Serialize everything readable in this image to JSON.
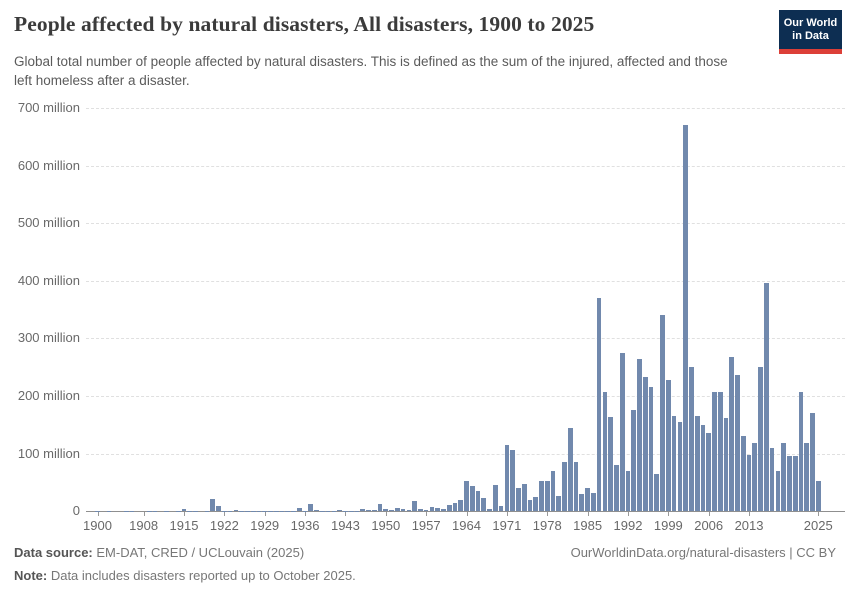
{
  "header": {
    "title": "People affected by natural disasters, All disasters, 1900 to 2025",
    "subtitle": "Global total number of people affected by natural disasters. This is defined as the sum of the injured, affected and those left homeless after a disaster.",
    "logo": {
      "line1": "Our World",
      "line2": "in Data",
      "bg_color": "#0d2e52",
      "stripe_color": "#dc3f38"
    }
  },
  "chart_data": {
    "type": "bar",
    "title": "People affected by natural disasters, All disasters, 1900 to 2025",
    "unit": "million people",
    "bar_color": "#7189ad",
    "grid": "dashed horizontal",
    "ylim": [
      0,
      700
    ],
    "ytick_step": 100,
    "ytick_labels": [
      "0",
      "100 million",
      "200 million",
      "300 million",
      "400 million",
      "500 million",
      "600 million",
      "700 million"
    ],
    "xtick_years": [
      1900,
      1908,
      1915,
      1922,
      1929,
      1936,
      1943,
      1950,
      1957,
      1964,
      1971,
      1978,
      1985,
      1992,
      1999,
      2006,
      2013,
      2025
    ],
    "x_start": 1900,
    "x_end": 2025,
    "years": [
      1900,
      1901,
      1902,
      1903,
      1904,
      1905,
      1906,
      1907,
      1908,
      1909,
      1910,
      1911,
      1912,
      1913,
      1914,
      1915,
      1916,
      1917,
      1918,
      1919,
      1920,
      1921,
      1922,
      1923,
      1924,
      1925,
      1926,
      1927,
      1928,
      1929,
      1930,
      1931,
      1932,
      1933,
      1934,
      1935,
      1936,
      1937,
      1938,
      1939,
      1940,
      1941,
      1942,
      1943,
      1944,
      1945,
      1946,
      1947,
      1948,
      1949,
      1950,
      1951,
      1952,
      1953,
      1954,
      1955,
      1956,
      1957,
      1958,
      1959,
      1960,
      1961,
      1962,
      1963,
      1964,
      1965,
      1966,
      1967,
      1968,
      1969,
      1970,
      1971,
      1972,
      1973,
      1974,
      1975,
      1976,
      1977,
      1978,
      1979,
      1980,
      1981,
      1982,
      1983,
      1984,
      1985,
      1986,
      1987,
      1988,
      1989,
      1990,
      1991,
      1992,
      1993,
      1994,
      1995,
      1996,
      1997,
      1998,
      1999,
      2000,
      2001,
      2002,
      2003,
      2004,
      2005,
      2006,
      2007,
      2008,
      2009,
      2010,
      2011,
      2012,
      2013,
      2014,
      2015,
      2016,
      2017,
      2018,
      2019,
      2020,
      2021,
      2022,
      2023,
      2024,
      2025
    ],
    "values": [
      0.2,
      0,
      0.2,
      0,
      0,
      0.2,
      0.3,
      0,
      0,
      1,
      0.3,
      0,
      0.5,
      0,
      0.3,
      4,
      0.5,
      0.3,
      0,
      0.5,
      22,
      9,
      0.3,
      0.5,
      1.5,
      0.3,
      0.5,
      0.8,
      0.5,
      0.5,
      0.3,
      0.5,
      1,
      0.3,
      0.5,
      5,
      0.5,
      12,
      2,
      0.5,
      0.3,
      0.5,
      2,
      1,
      0.3,
      1,
      3,
      2,
      1.5,
      12.5,
      4.5,
      1.5,
      5.5,
      3,
      1.5,
      18,
      3.5,
      2,
      7,
      5,
      3,
      10,
      15,
      19,
      52,
      44,
      35,
      23,
      4,
      46,
      9,
      115,
      107,
      41,
      48,
      20,
      25,
      52,
      52,
      70,
      26,
      86,
      145,
      85,
      29,
      41,
      32,
      371,
      207,
      164,
      80,
      275,
      70,
      175,
      265,
      233,
      216,
      64,
      341,
      228,
      166,
      155,
      670,
      251,
      166,
      150,
      135,
      207,
      207,
      161,
      268,
      236,
      130,
      98,
      119,
      251,
      397,
      110,
      70,
      119,
      95,
      96,
      207,
      119,
      170,
      52
    ]
  },
  "footer": {
    "source_label": "Data source:",
    "source_text": " EM-DAT, CRED / UCLouvain (2025)",
    "note_label": "Note:",
    "note_text": " Data includes disasters reported up to October 2025.",
    "link_text": "OurWorldinData.org/natural-disasters | CC BY"
  }
}
